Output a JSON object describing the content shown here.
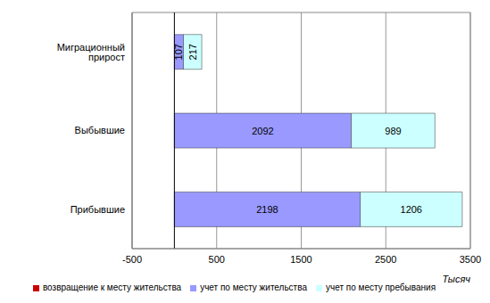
{
  "chart_data": {
    "type": "bar",
    "orientation": "horizontal",
    "stacked": true,
    "data_labels": true,
    "grid": true,
    "legend": "bottom",
    "categories": [
      "Миграционный прирост",
      "Выбывшие",
      "Прибывшие"
    ],
    "series": [
      {
        "name": "учет по месту жительства",
        "color": "#9999ff",
        "values": [
          107,
          2092,
          2198
        ]
      },
      {
        "name": "возвращение к месту жительства",
        "color": "#cc0000",
        "values": [
          null,
          null,
          null
        ]
      },
      {
        "name": "учет по месту пребывания",
        "color": "#ccffff",
        "values": [
          217,
          989,
          1206
        ]
      }
    ],
    "xlim": [
      -500,
      3500
    ],
    "xticks": [
      -500,
      500,
      1500,
      2500,
      3500
    ],
    "x_label": "Тысяч"
  }
}
